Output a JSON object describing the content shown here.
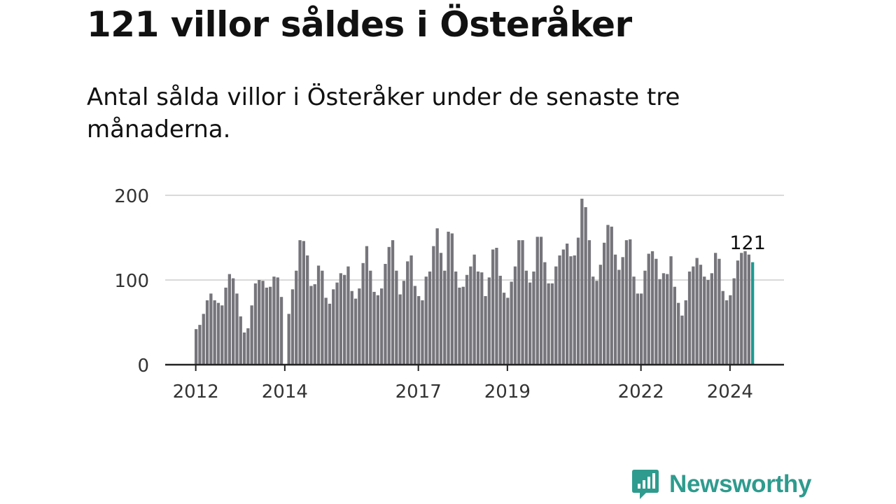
{
  "title": "121 villor såldes i Österåker",
  "subtitle": "Antal sålda villor i Österåker under de senaste tre månaderna.",
  "brand": {
    "name": "Newsworthy",
    "color": "#2e9b8e",
    "icon": "newsworthy-chart-icon"
  },
  "colors": {
    "bar": "#76757b",
    "highlight": "#1d9a90",
    "grid": "#d9d9d9",
    "axis": "#222222",
    "text": "#333333"
  },
  "chart_data": {
    "type": "bar",
    "title": "121 villor såldes i Österåker",
    "xlabel": "",
    "ylabel": "",
    "ylim": [
      0,
      200
    ],
    "yticks": [
      0,
      100,
      200
    ],
    "xticks": [
      {
        "label": "2012",
        "index": 0
      },
      {
        "label": "2014",
        "index": 24
      },
      {
        "label": "2017",
        "index": 60
      },
      {
        "label": "2019",
        "index": 84
      },
      {
        "label": "2022",
        "index": 120
      },
      {
        "label": "2024",
        "index": 144
      }
    ],
    "grid": true,
    "annotation": {
      "label": "121",
      "value": 121,
      "index": 150
    },
    "values": [
      42,
      47,
      60,
      76,
      84,
      76,
      73,
      70,
      91,
      107,
      102,
      84,
      57,
      38,
      43,
      70,
      96,
      100,
      99,
      91,
      92,
      104,
      103,
      80,
      0,
      60,
      89,
      111,
      147,
      146,
      129,
      93,
      95,
      117,
      111,
      79,
      72,
      89,
      97,
      108,
      106,
      116,
      87,
      78,
      90,
      120,
      140,
      111,
      86,
      82,
      90,
      119,
      139,
      147,
      111,
      83,
      99,
      122,
      129,
      93,
      81,
      76,
      104,
      110,
      140,
      161,
      132,
      111,
      157,
      155,
      110,
      91,
      92,
      106,
      116,
      130,
      110,
      109,
      81,
      103,
      136,
      138,
      105,
      85,
      79,
      98,
      116,
      147,
      147,
      111,
      97,
      110,
      151,
      151,
      121,
      96,
      96,
      116,
      129,
      136,
      143,
      128,
      129,
      150,
      196,
      186,
      147,
      104,
      99,
      118,
      144,
      165,
      163,
      130,
      112,
      127,
      147,
      148,
      104,
      84,
      84,
      111,
      131,
      134,
      125,
      101,
      108,
      107,
      128,
      92,
      73,
      58,
      76,
      110,
      116,
      126,
      118,
      104,
      100,
      108,
      132,
      125,
      87,
      76,
      82,
      102,
      123,
      132,
      140,
      130,
      121
    ]
  }
}
